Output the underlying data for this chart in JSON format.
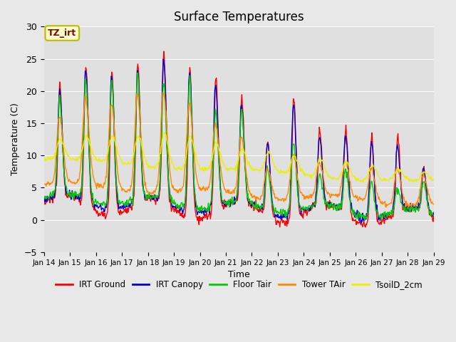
{
  "title": "Surface Temperatures",
  "xlabel": "Time",
  "ylabel": "Temperature (C)",
  "ylim": [
    -5,
    30
  ],
  "x_tick_labels": [
    "Jan 14",
    "Jan 15",
    "Jan 16",
    "Jan 17",
    "Jan 18",
    "Jan 19",
    "Jan 20",
    "Jan 21",
    "Jan 22",
    "Jan 23",
    "Jan 24",
    "Jan 25",
    "Jan 26",
    "Jan 27",
    "Jan 28",
    "Jan 29"
  ],
  "legend_entries": [
    "IRT Ground",
    "IRT Canopy",
    "Floor Tair",
    "Tower TAir",
    "TsoilD_2cm"
  ],
  "line_colors": [
    "#ff0000",
    "#0000cc",
    "#00cc00",
    "#ff8800",
    "#eeee00"
  ],
  "bg_color": "#e8e8e8",
  "plot_bg_color": "#e0e0e0",
  "annotation_text": "TZ_irt",
  "annotation_color": "#880000",
  "annotation_bg": "#ffffcc",
  "annotation_border": "#bbbb00",
  "title_fontsize": 12
}
